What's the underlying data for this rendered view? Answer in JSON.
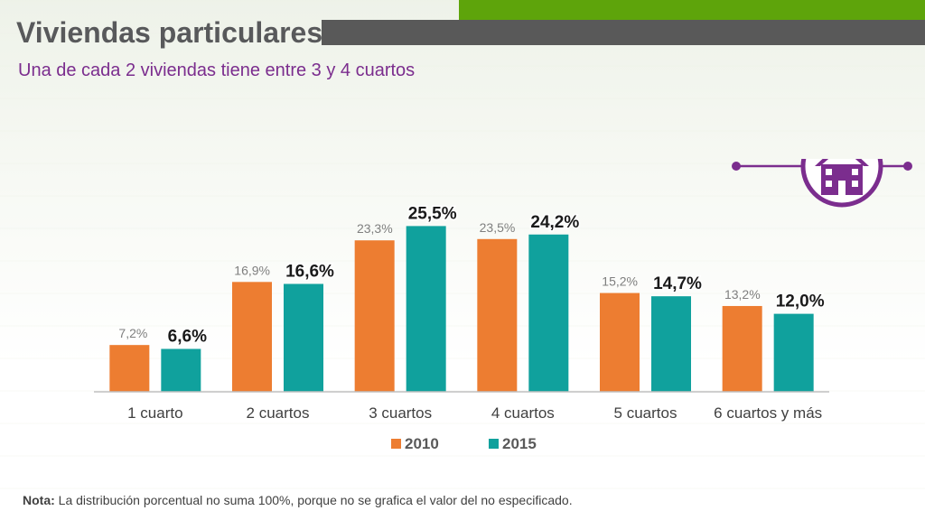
{
  "header": {
    "title": "Viviendas particulares",
    "subtitle": "Una de cada 2 viviendas tiene entre 3 y 4 cuartos"
  },
  "colors": {
    "accent_green": "#5ea40b",
    "header_gray": "#595959",
    "title_gray": "#58595b",
    "purple": "#7b2d8e",
    "series_2010": "#ed7d31",
    "series_2015": "#10a19d"
  },
  "icons": {
    "house": "house-icon"
  },
  "chart_data": {
    "type": "bar",
    "categories": [
      "1 cuarto",
      "2 cuartos",
      "3 cuartos",
      "4 cuartos",
      "5 cuartos",
      "6 cuartos y más"
    ],
    "series": [
      {
        "name": "2010",
        "values": [
          7.2,
          16.9,
          23.3,
          23.5,
          15.2,
          13.2
        ],
        "labels": [
          "7,2%",
          "16,9%",
          "23,3%",
          "23,5%",
          "15,2%",
          "13,2%"
        ]
      },
      {
        "name": "2015",
        "values": [
          6.6,
          16.6,
          25.5,
          24.2,
          14.7,
          12.0
        ],
        "labels": [
          "6,6%",
          "16,6%",
          "25,5%",
          "24,2%",
          "14,7%",
          "12,0%"
        ]
      }
    ],
    "ylim": [
      0,
      26.5
    ],
    "grid": false,
    "legend": "bottom-center"
  },
  "footer": {
    "note_label": "Nota:",
    "note_text": " La distribución porcentual no suma 100%, porque no se grafica el valor del no especificado."
  }
}
